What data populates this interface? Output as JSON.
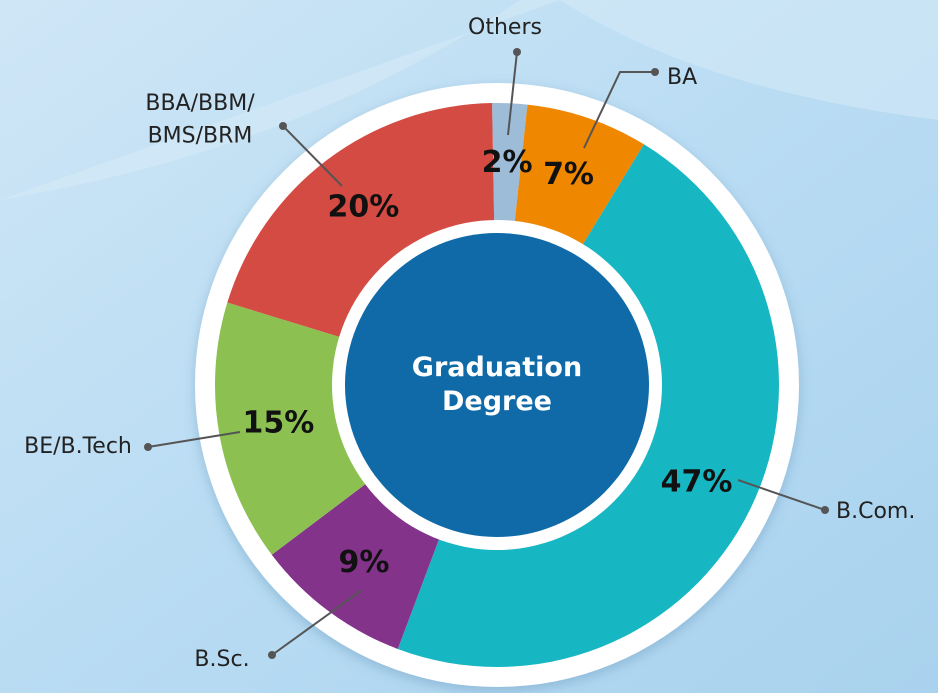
{
  "chart_data": {
    "type": "pie",
    "center_label": "Graduation\nDegree",
    "categories": [
      "Others",
      "BA",
      "B.Com.",
      "B.Sc.",
      "BE/B.Tech",
      "BBA/BBM/\nBMS/BRM"
    ],
    "values": [
      2,
      7,
      47,
      9,
      15,
      20
    ],
    "value_labels": [
      "2%",
      "7%",
      "47%",
      "9%",
      "15%",
      "20%"
    ],
    "colors": [
      "#9dbcd8",
      "#ef8700",
      "#17b6c3",
      "#84338b",
      "#8cc152",
      "#d34b42"
    ]
  }
}
